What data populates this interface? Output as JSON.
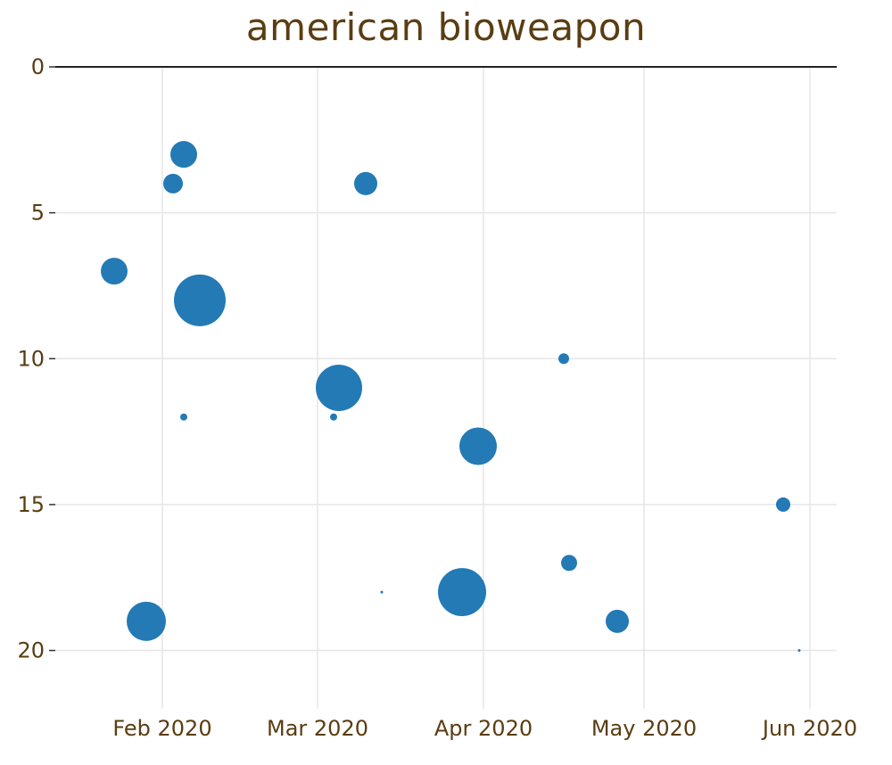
{
  "chart_data": {
    "type": "scatter",
    "title": "american bioweapon",
    "xlabel": "",
    "ylabel": "",
    "x_axis": {
      "type": "date",
      "range": [
        "2020-01-12",
        "2020-06-06"
      ],
      "ticks": [
        {
          "date": "2020-02-01",
          "label": "Feb 2020"
        },
        {
          "date": "2020-03-01",
          "label": "Mar 2020"
        },
        {
          "date": "2020-04-01",
          "label": "Apr 2020"
        },
        {
          "date": "2020-05-01",
          "label": "May 2020"
        },
        {
          "date": "2020-06-01",
          "label": "Jun 2020"
        }
      ]
    },
    "y_axis": {
      "range": [
        22,
        0
      ],
      "reversed": true,
      "ticks": [
        0,
        5,
        10,
        15,
        20
      ]
    },
    "grid": true,
    "marker_color": "#1f77b4",
    "points": [
      {
        "x": "2020-01-23",
        "y": 7,
        "size": 15
      },
      {
        "x": "2020-01-29",
        "y": 19,
        "size": 22
      },
      {
        "x": "2020-02-03",
        "y": 4,
        "size": 11
      },
      {
        "x": "2020-02-05",
        "y": 3,
        "size": 15
      },
      {
        "x": "2020-02-05",
        "y": 12,
        "size": 4
      },
      {
        "x": "2020-02-08",
        "y": 8,
        "size": 29
      },
      {
        "x": "2020-03-04",
        "y": 12,
        "size": 4
      },
      {
        "x": "2020-03-05",
        "y": 11,
        "size": 26
      },
      {
        "x": "2020-03-10",
        "y": 4,
        "size": 13
      },
      {
        "x": "2020-03-13",
        "y": 18,
        "size": 1.5
      },
      {
        "x": "2020-03-28",
        "y": 18,
        "size": 27
      },
      {
        "x": "2020-03-31",
        "y": 13,
        "size": 21
      },
      {
        "x": "2020-04-16",
        "y": 10,
        "size": 6
      },
      {
        "x": "2020-04-17",
        "y": 17,
        "size": 9
      },
      {
        "x": "2020-04-26",
        "y": 19,
        "size": 13
      },
      {
        "x": "2020-05-27",
        "y": 15,
        "size": 8
      },
      {
        "x": "2020-05-30",
        "y": 20,
        "size": 1.5
      }
    ]
  }
}
